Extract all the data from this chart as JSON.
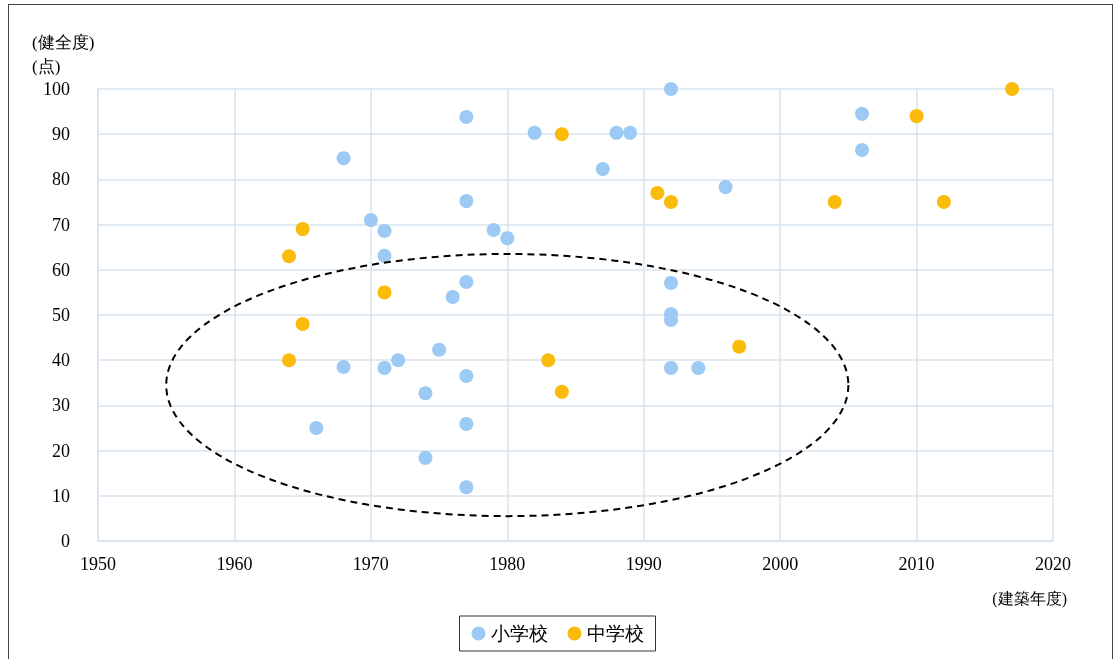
{
  "chart_data": {
    "type": "scatter",
    "xlabel": "(建築年度)",
    "ylabel": "(健全度)\n(点)",
    "xlim": [
      1950,
      2020
    ],
    "xticks": [
      1950,
      1960,
      1970,
      1980,
      1990,
      2000,
      2010,
      2020
    ],
    "ylim": [
      0,
      100
    ],
    "yticks": [
      0,
      10,
      20,
      30,
      40,
      50,
      60,
      70,
      80,
      90,
      100
    ],
    "grid": true,
    "legend": "bottom",
    "marker": "circle",
    "series": [
      {
        "name": "小学校",
        "color": "#9dcaf5",
        "x": [
          1992,
          1977,
          1982,
          1988,
          1989,
          2006,
          2006,
          1968,
          1987,
          1996,
          1977,
          1970,
          1971,
          1979,
          1980,
          1971,
          1977,
          1976,
          1992,
          1992,
          1992,
          1975,
          1972,
          1968,
          1971,
          1992,
          1994,
          1974,
          1977,
          1966,
          1977,
          1974,
          1977
        ],
        "values": [
          100,
          93.8,
          90.3,
          90.3,
          90.3,
          94.5,
          86.5,
          84.7,
          82.3,
          78.3,
          75.2,
          71,
          68.6,
          68.8,
          67,
          63.1,
          57.3,
          54,
          57.1,
          50.2,
          48.9,
          42.3,
          40,
          38.5,
          38.3,
          38.3,
          38.3,
          32.7,
          36.5,
          25,
          25.9,
          18.4,
          11.9
        ]
      },
      {
        "name": "中学校",
        "color": "#fbbb0b",
        "x": [
          2017,
          1984,
          2010,
          1991,
          1992,
          2004,
          2012,
          1965,
          1964,
          1971,
          1965,
          1964,
          1983,
          1997,
          1984
        ],
        "values": [
          100,
          90,
          94,
          77,
          75,
          75,
          75,
          69,
          63,
          55,
          48,
          40,
          40,
          43,
          33
        ]
      }
    ]
  }
}
